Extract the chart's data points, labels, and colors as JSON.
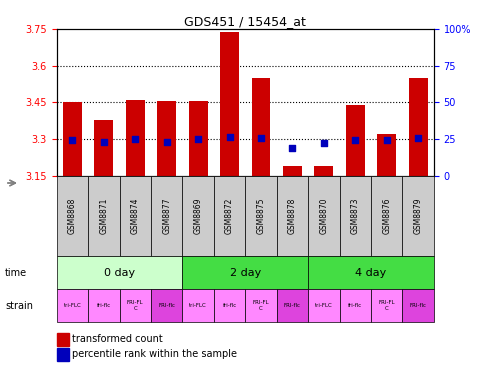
{
  "title": "GDS451 / 15454_at",
  "samples": [
    "GSM8868",
    "GSM8871",
    "GSM8874",
    "GSM8877",
    "GSM8869",
    "GSM8872",
    "GSM8875",
    "GSM8878",
    "GSM8870",
    "GSM8873",
    "GSM8876",
    "GSM8879"
  ],
  "bar_values": [
    3.45,
    3.38,
    3.46,
    3.455,
    3.455,
    3.74,
    3.55,
    3.19,
    3.19,
    3.44,
    3.32,
    3.55
  ],
  "dot_values": [
    3.295,
    3.29,
    3.3,
    3.29,
    3.3,
    3.31,
    3.305,
    3.265,
    3.285,
    3.295,
    3.295,
    3.305
  ],
  "ymin": 3.15,
  "ymax": 3.75,
  "yticks": [
    3.15,
    3.3,
    3.45,
    3.6,
    3.75
  ],
  "ytick_labels": [
    "3.15",
    "3.3",
    "3.45",
    "3.6",
    "3.75"
  ],
  "y2ticks": [
    0,
    25,
    50,
    75,
    100
  ],
  "y2tick_labels": [
    "0",
    "25",
    "50",
    "75",
    "100%"
  ],
  "bar_color": "#cc0000",
  "dot_color": "#0000bb",
  "time_groups": [
    {
      "label": "0 day",
      "start": 0,
      "end": 4,
      "color": "#ccffcc"
    },
    {
      "label": "2 day",
      "start": 4,
      "end": 8,
      "color": "#44dd44"
    },
    {
      "label": "4 day",
      "start": 8,
      "end": 12,
      "color": "#44dd44"
    }
  ],
  "strain_labels": [
    "tri-FLC",
    "fri-flc",
    "FRI-FL\nC",
    "FRI-flc",
    "tri-FLC",
    "fri-flc",
    "FRI-FL\nC",
    "FRI-flc",
    "tri-FLC",
    "fri-flc",
    "FRI-FL\nC",
    "FRI-flc"
  ],
  "strain_colors": [
    "#ff88ff",
    "#ff88ff",
    "#ff88ff",
    "#dd44dd",
    "#ff88ff",
    "#ff88ff",
    "#ff88ff",
    "#dd44dd",
    "#ff88ff",
    "#ff88ff",
    "#ff88ff",
    "#dd44dd"
  ],
  "legend_red": "transformed count",
  "legend_blue": "percentile rank within the sample",
  "sample_box_color": "#cccccc"
}
